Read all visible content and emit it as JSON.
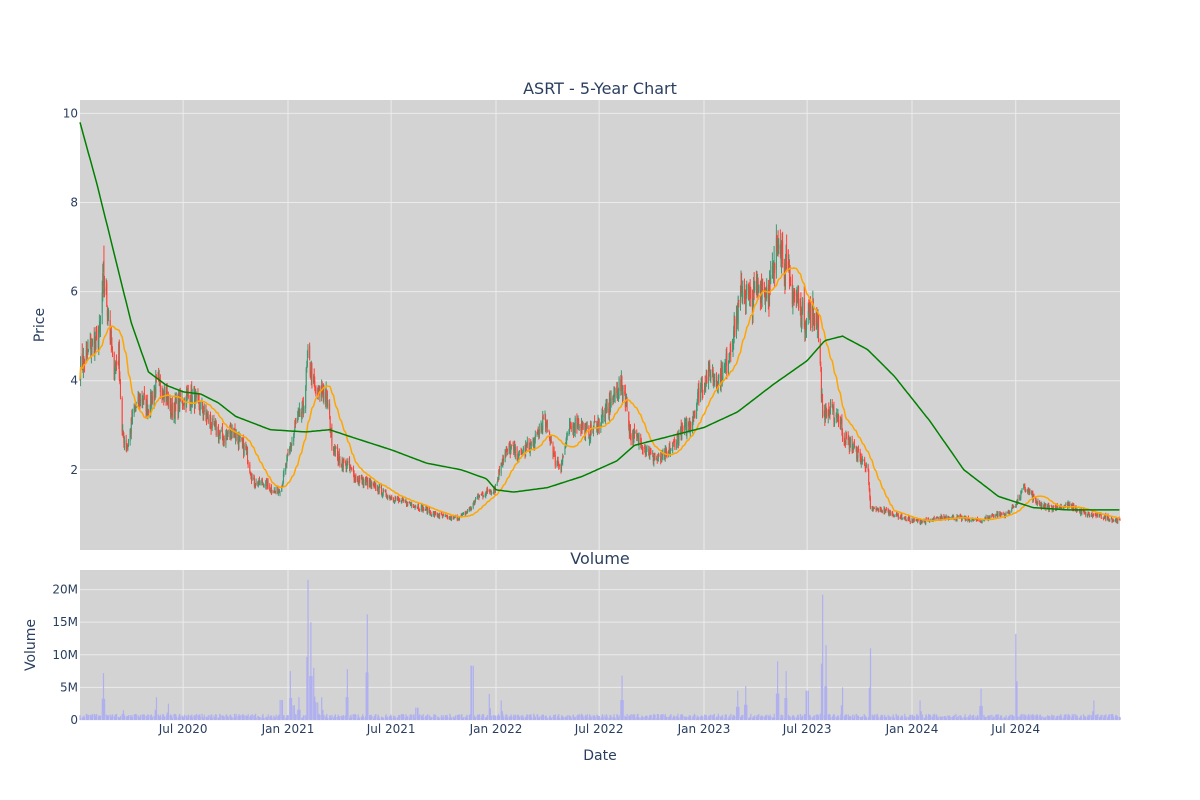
{
  "chart_data": [
    {
      "type": "candlestick",
      "title": "ASRT - 5-Year Chart",
      "xlabel": "",
      "ylabel": "Price",
      "ylim": [
        0.2,
        10.3
      ],
      "x_range": [
        "2020-01-02",
        "2024-12-31"
      ],
      "yticks": [
        2,
        4,
        6,
        8,
        10
      ],
      "grid": true,
      "colors": {
        "increasing": "#3d9970",
        "decreasing": "#ff4136",
        "ma_short": "#ffa500",
        "ma_long": "#008000",
        "plot_bg": "#d3d3d3",
        "grid": "#ebebeb"
      },
      "close_anchors": [
        [
          "2020-01-02",
          4.3
        ],
        [
          "2020-01-20",
          4.7
        ],
        [
          "2020-02-05",
          5.0
        ],
        [
          "2020-02-12",
          6.3
        ],
        [
          "2020-02-20",
          5.6
        ],
        [
          "2020-03-01",
          4.2
        ],
        [
          "2020-03-10",
          4.6
        ],
        [
          "2020-03-16",
          2.8
        ],
        [
          "2020-03-25",
          2.5
        ],
        [
          "2020-04-05",
          3.3
        ],
        [
          "2020-04-20",
          3.6
        ],
        [
          "2020-05-01",
          3.4
        ],
        [
          "2020-05-15",
          3.9
        ],
        [
          "2020-05-30",
          3.8
        ],
        [
          "2020-06-10",
          3.3
        ],
        [
          "2020-06-25",
          3.5
        ],
        [
          "2020-07-05",
          3.6
        ],
        [
          "2020-07-15",
          3.6
        ],
        [
          "2020-08-01",
          3.4
        ],
        [
          "2020-08-20",
          3.0
        ],
        [
          "2020-09-10",
          2.7
        ],
        [
          "2020-09-25",
          2.9
        ],
        [
          "2020-10-05",
          2.7
        ],
        [
          "2020-10-20",
          2.4
        ],
        [
          "2020-11-01",
          1.7
        ],
        [
          "2020-11-20",
          1.7
        ],
        [
          "2020-12-10",
          1.5
        ],
        [
          "2020-12-20",
          1.6
        ],
        [
          "2021-01-01",
          2.3
        ],
        [
          "2021-01-15",
          3.0
        ],
        [
          "2021-01-28",
          3.4
        ],
        [
          "2021-02-05",
          4.5
        ],
        [
          "2021-02-12",
          4.1
        ],
        [
          "2021-02-20",
          3.6
        ],
        [
          "2021-03-01",
          3.8
        ],
        [
          "2021-03-10",
          3.6
        ],
        [
          "2021-03-20",
          2.6
        ],
        [
          "2021-04-01",
          2.2
        ],
        [
          "2021-04-15",
          2.1
        ],
        [
          "2021-05-01",
          1.8
        ],
        [
          "2021-05-20",
          1.7
        ],
        [
          "2021-06-15",
          1.5
        ],
        [
          "2021-07-15",
          1.3
        ],
        [
          "2021-08-15",
          1.2
        ],
        [
          "2021-09-15",
          1.0
        ],
        [
          "2021-10-15",
          0.9
        ],
        [
          "2021-11-01",
          0.95
        ],
        [
          "2021-11-15",
          1.1
        ],
        [
          "2021-12-01",
          1.4
        ],
        [
          "2021-12-15",
          1.5
        ],
        [
          "2022-01-01",
          1.6
        ],
        [
          "2022-01-10",
          2.2
        ],
        [
          "2022-01-25",
          2.5
        ],
        [
          "2022-02-10",
          2.3
        ],
        [
          "2022-02-25",
          2.5
        ],
        [
          "2022-03-10",
          2.6
        ],
        [
          "2022-03-25",
          3.1
        ],
        [
          "2022-04-05",
          2.8
        ],
        [
          "2022-04-15",
          2.2
        ],
        [
          "2022-04-25",
          2.1
        ],
        [
          "2022-05-10",
          2.9
        ],
        [
          "2022-05-25",
          3.1
        ],
        [
          "2022-06-10",
          2.8
        ],
        [
          "2022-06-25",
          3.0
        ],
        [
          "2022-07-10",
          3.2
        ],
        [
          "2022-07-25",
          3.6
        ],
        [
          "2022-08-05",
          3.9
        ],
        [
          "2022-08-15",
          3.7
        ],
        [
          "2022-08-25",
          2.8
        ],
        [
          "2022-09-15",
          2.6
        ],
        [
          "2022-10-01",
          2.3
        ],
        [
          "2022-10-15",
          2.2
        ],
        [
          "2022-11-01",
          2.4
        ],
        [
          "2022-11-20",
          2.8
        ],
        [
          "2022-12-10",
          3.1
        ],
        [
          "2022-12-25",
          3.8
        ],
        [
          "2023-01-10",
          4.2
        ],
        [
          "2023-01-25",
          4.0
        ],
        [
          "2023-02-10",
          4.4
        ],
        [
          "2023-02-25",
          5.3
        ],
        [
          "2023-03-10",
          6.1
        ],
        [
          "2023-03-25",
          5.8
        ],
        [
          "2023-04-10",
          6.2
        ],
        [
          "2023-04-25",
          6.0
        ],
        [
          "2023-05-05",
          6.5
        ],
        [
          "2023-05-12",
          7.4
        ],
        [
          "2023-05-20",
          6.8
        ],
        [
          "2023-05-30",
          6.2
        ],
        [
          "2023-06-10",
          5.9
        ],
        [
          "2023-06-25",
          5.4
        ],
        [
          "2023-07-10",
          5.5
        ],
        [
          "2023-07-20",
          5.4
        ],
        [
          "2023-07-28",
          3.3
        ],
        [
          "2023-08-10",
          3.3
        ],
        [
          "2023-08-25",
          3.2
        ],
        [
          "2023-09-05",
          2.7
        ],
        [
          "2023-09-20",
          2.5
        ],
        [
          "2023-10-05",
          2.2
        ],
        [
          "2023-10-15",
          2.1
        ],
        [
          "2023-10-20",
          1.1
        ],
        [
          "2023-11-10",
          1.1
        ],
        [
          "2023-12-01",
          1.0
        ],
        [
          "2024-01-01",
          0.85
        ],
        [
          "2024-02-01",
          0.85
        ],
        [
          "2024-03-01",
          0.95
        ],
        [
          "2024-04-01",
          0.9
        ],
        [
          "2024-05-01",
          0.85
        ],
        [
          "2024-05-25",
          1.0
        ],
        [
          "2024-06-15",
          1.0
        ],
        [
          "2024-07-05",
          1.3
        ],
        [
          "2024-07-15",
          1.6
        ],
        [
          "2024-07-25",
          1.5
        ],
        [
          "2024-08-10",
          1.2
        ],
        [
          "2024-09-01",
          1.15
        ],
        [
          "2024-10-01",
          1.2
        ],
        [
          "2024-11-01",
          1.0
        ],
        [
          "2024-12-01",
          0.95
        ],
        [
          "2024-12-31",
          0.85
        ]
      ],
      "ma_long_anchors": [
        [
          "2020-01-02",
          9.8
        ],
        [
          "2020-02-01",
          8.4
        ],
        [
          "2020-03-01",
          6.9
        ],
        [
          "2020-04-01",
          5.3
        ],
        [
          "2020-05-01",
          4.2
        ],
        [
          "2020-06-01",
          3.9
        ],
        [
          "2020-07-01",
          3.75
        ],
        [
          "2020-08-01",
          3.7
        ],
        [
          "2020-09-01",
          3.5
        ],
        [
          "2020-10-01",
          3.2
        ],
        [
          "2020-12-01",
          2.9
        ],
        [
          "2021-02-01",
          2.85
        ],
        [
          "2021-03-15",
          2.9
        ],
        [
          "2021-05-01",
          2.7
        ],
        [
          "2021-07-01",
          2.45
        ],
        [
          "2021-09-01",
          2.15
        ],
        [
          "2021-11-01",
          2.0
        ],
        [
          "2021-12-15",
          1.8
        ],
        [
          "2022-01-01",
          1.55
        ],
        [
          "2022-02-01",
          1.5
        ],
        [
          "2022-04-01",
          1.6
        ],
        [
          "2022-06-01",
          1.85
        ],
        [
          "2022-08-01",
          2.2
        ],
        [
          "2022-09-01",
          2.55
        ],
        [
          "2022-11-01",
          2.75
        ],
        [
          "2023-01-01",
          2.95
        ],
        [
          "2023-03-01",
          3.3
        ],
        [
          "2023-05-01",
          3.9
        ],
        [
          "2023-07-01",
          4.45
        ],
        [
          "2023-08-01",
          4.9
        ],
        [
          "2023-09-01",
          5.0
        ],
        [
          "2023-10-15",
          4.7
        ],
        [
          "2023-12-01",
          4.1
        ],
        [
          "2024-02-01",
          3.1
        ],
        [
          "2024-04-01",
          2.0
        ],
        [
          "2024-06-01",
          1.4
        ],
        [
          "2024-08-01",
          1.15
        ],
        [
          "2024-10-01",
          1.1
        ],
        [
          "2024-12-31",
          1.1
        ]
      ],
      "ma_short_window_days": 45
    },
    {
      "type": "bar",
      "title": "Volume",
      "xlabel": "Date",
      "ylabel": "Volume",
      "ylim": [
        0,
        23000000
      ],
      "yticks": [
        0,
        5000000,
        10000000,
        15000000,
        20000000
      ],
      "yticklabels": [
        "0",
        "5M",
        "10M",
        "15M",
        "20M"
      ],
      "xticks": [
        "2020-07-01",
        "2021-01-01",
        "2021-07-01",
        "2022-01-01",
        "2022-07-01",
        "2023-01-01",
        "2023-07-01",
        "2024-01-01",
        "2024-07-01"
      ],
      "xticklabels": [
        "Jul 2020",
        "Jan 2021",
        "Jul 2021",
        "Jan 2022",
        "Jul 2022",
        "Jan 2023",
        "Jul 2023",
        "Jan 2024",
        "Jul 2024"
      ],
      "color": "#b0b0f0",
      "baseline_volume": 600000,
      "spikes": [
        [
          "2020-02-12",
          7200000
        ],
        [
          "2020-03-18",
          1500000
        ],
        [
          "2020-05-15",
          3500000
        ],
        [
          "2020-06-05",
          2500000
        ],
        [
          "2020-12-20",
          6800000
        ],
        [
          "2021-01-05",
          7500000
        ],
        [
          "2021-01-10",
          5000000
        ],
        [
          "2021-01-20",
          3500000
        ],
        [
          "2021-02-05",
          21500000
        ],
        [
          "2021-02-10",
          15000000
        ],
        [
          "2021-02-15",
          8000000
        ],
        [
          "2021-02-20",
          6000000
        ],
        [
          "2021-03-01",
          3500000
        ],
        [
          "2021-04-15",
          7800000
        ],
        [
          "2021-05-20",
          16200000
        ],
        [
          "2021-08-15",
          4200000
        ],
        [
          "2021-11-20",
          18500000
        ],
        [
          "2021-12-20",
          4000000
        ],
        [
          "2022-01-10",
          3000000
        ],
        [
          "2022-08-10",
          6800000
        ],
        [
          "2023-03-01",
          4500000
        ],
        [
          "2023-03-15",
          5200000
        ],
        [
          "2023-05-10",
          9000000
        ],
        [
          "2023-05-25",
          7500000
        ],
        [
          "2023-07-01",
          10000000
        ],
        [
          "2023-07-28",
          19200000
        ],
        [
          "2023-08-03",
          11500000
        ],
        [
          "2023-09-01",
          5000000
        ],
        [
          "2023-10-20",
          11000000
        ],
        [
          "2024-01-15",
          3000000
        ],
        [
          "2024-05-01",
          4800000
        ],
        [
          "2024-07-01",
          13200000
        ],
        [
          "2024-11-15",
          3000000
        ],
        [
          "2024-12-15",
          2000000
        ]
      ]
    }
  ]
}
